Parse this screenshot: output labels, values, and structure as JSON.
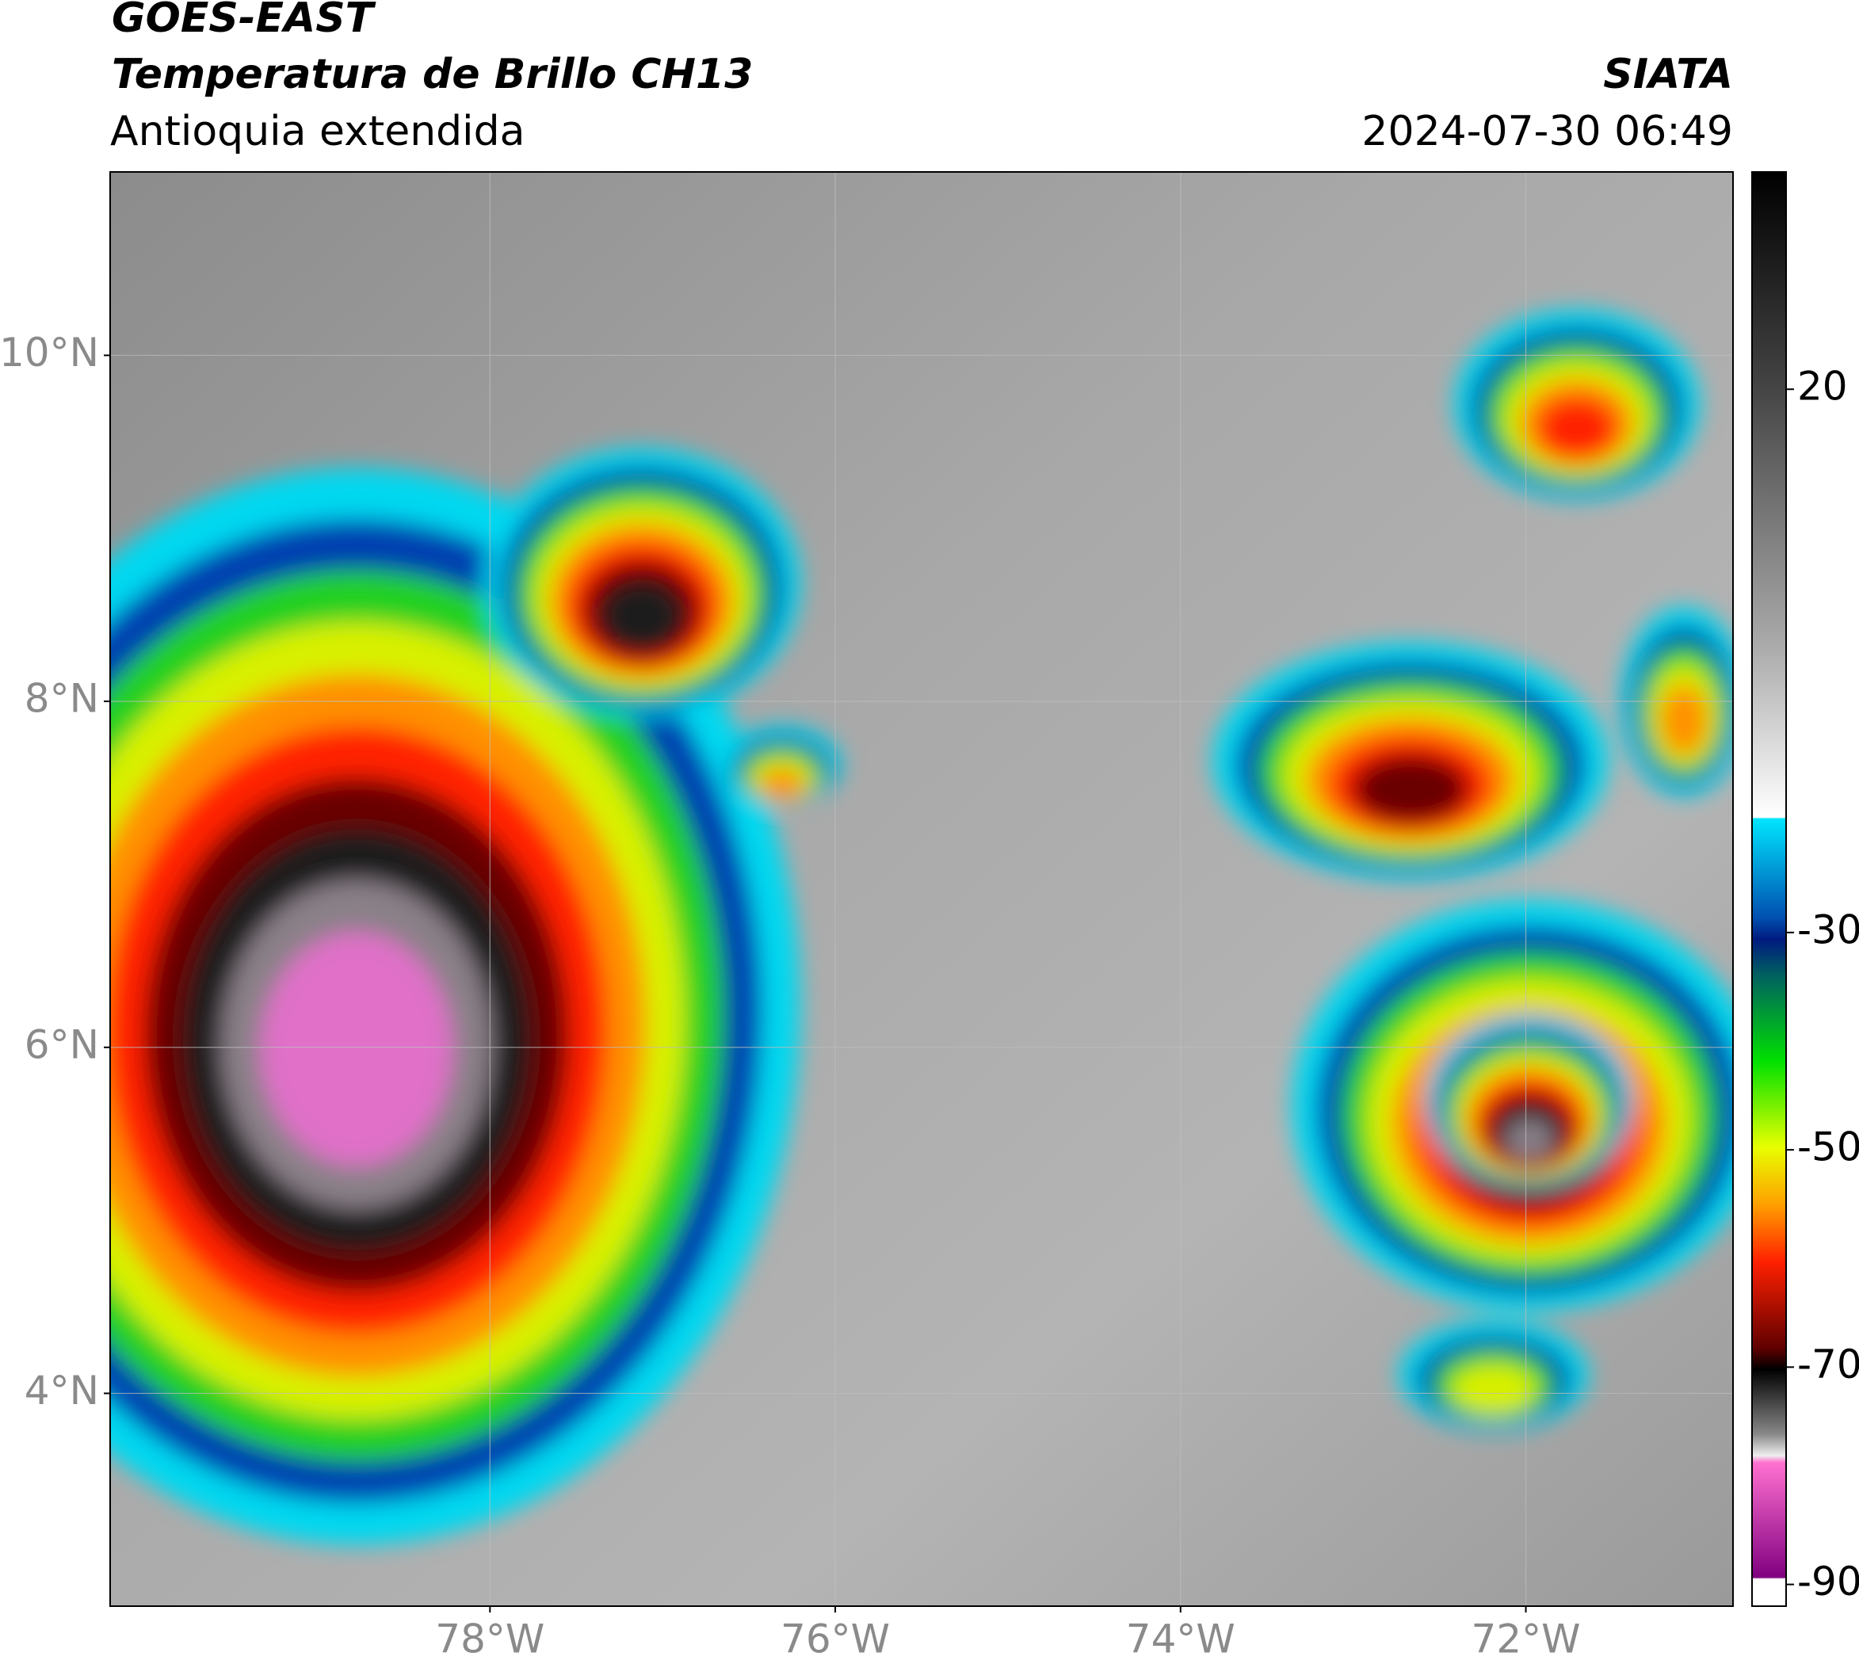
{
  "header": {
    "title": "GOES-EAST",
    "subtitle": "Temperatura de Brillo CH13",
    "region": "Antioquia extendida",
    "source": "SIATA",
    "datetime": "2024-07-30 06:49"
  },
  "map": {
    "xlim": [
      -80.2,
      -70.8
    ],
    "ylim": [
      2.77,
      11.06
    ],
    "xticks": [
      {
        "value": -78,
        "label": "78°W"
      },
      {
        "value": -76,
        "label": "76°W"
      },
      {
        "value": -74,
        "label": "74°W"
      },
      {
        "value": -72,
        "label": "72°W"
      }
    ],
    "yticks": [
      {
        "value": 10,
        "label": "10°N"
      },
      {
        "value": 8,
        "label": "8°N"
      },
      {
        "value": 6,
        "label": "6°N"
      },
      {
        "value": 4,
        "label": "4°N"
      }
    ],
    "grid": true
  },
  "colorbar": {
    "lim": [
      -92,
      40
    ],
    "ticks": [
      20,
      -30,
      -50,
      -70,
      -90
    ]
  }
}
